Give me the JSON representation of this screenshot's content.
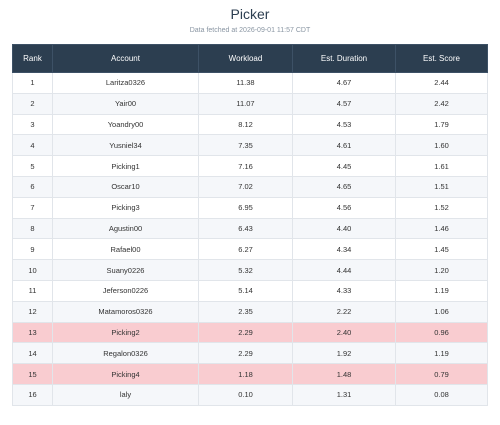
{
  "header": {
    "title": "Picker",
    "subtitle": "Data fetched at 2026-09-01 11:57 CDT"
  },
  "table": {
    "columns": [
      "Rank",
      "Account",
      "Workload",
      "Est. Duration",
      "Est. Score"
    ],
    "rows": [
      [
        "1",
        "Laritza0326",
        "11.38",
        "4.67",
        "2.44"
      ],
      [
        "2",
        "Yair00",
        "11.07",
        "4.57",
        "2.42"
      ],
      [
        "3",
        "Yoandry00",
        "8.12",
        "4.53",
        "1.79"
      ],
      [
        "4",
        "Yusniel34",
        "7.35",
        "4.61",
        "1.60"
      ],
      [
        "5",
        "Picking1",
        "7.16",
        "4.45",
        "1.61"
      ],
      [
        "6",
        "Oscar10",
        "7.02",
        "4.65",
        "1.51"
      ],
      [
        "7",
        "Picking3",
        "6.95",
        "4.56",
        "1.52"
      ],
      [
        "8",
        "Agustin00",
        "6.43",
        "4.40",
        "1.46"
      ],
      [
        "9",
        "Rafael00",
        "6.27",
        "4.34",
        "1.45"
      ],
      [
        "10",
        "Suany0226",
        "5.32",
        "4.44",
        "1.20"
      ],
      [
        "11",
        "Jeferson0226",
        "5.14",
        "4.33",
        "1.19"
      ],
      [
        "12",
        "Matamoros0326",
        "2.35",
        "2.22",
        "1.06"
      ],
      [
        "13",
        "Picking2",
        "2.29",
        "2.40",
        "0.96"
      ],
      [
        "14",
        "Regalon0326",
        "2.29",
        "1.92",
        "1.19"
      ],
      [
        "15",
        "Picking4",
        "1.18",
        "1.48",
        "0.79"
      ],
      [
        "16",
        "laly",
        "0.10",
        "1.31",
        "0.08"
      ]
    ]
  }
}
